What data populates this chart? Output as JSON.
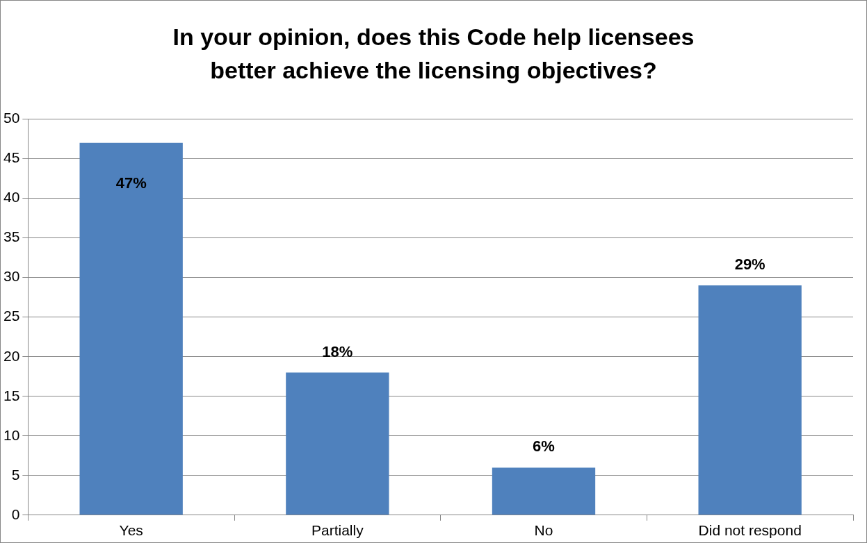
{
  "chart_data": {
    "type": "bar",
    "title": "In your opinion, does this Code help licensees better achieve the licensing objectives?",
    "categories": [
      "Yes",
      "Partially",
      "No",
      "Did not respond"
    ],
    "values": [
      47,
      18,
      6,
      29
    ],
    "value_labels": [
      "47%",
      "18%",
      "6%",
      "29%"
    ],
    "color": "#4f81bd",
    "ylim": [
      0,
      50
    ],
    "yticks": [
      0,
      5,
      10,
      15,
      20,
      25,
      30,
      35,
      40,
      45,
      50
    ],
    "grid": "y",
    "legend": false
  }
}
